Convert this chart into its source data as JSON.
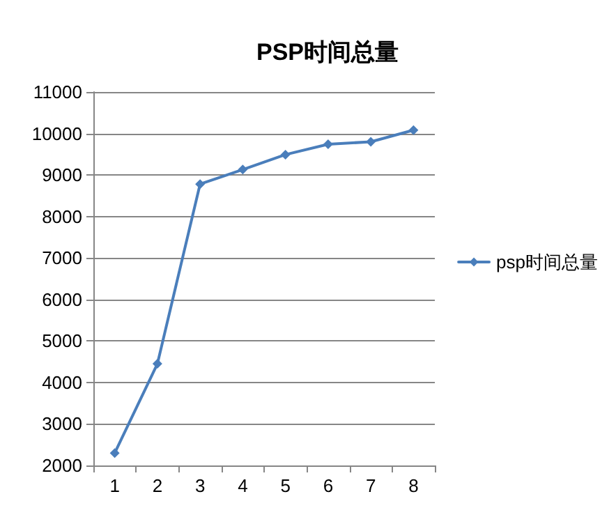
{
  "chart_data": {
    "type": "line",
    "title": "PSP时间总量",
    "categories": [
      "1",
      "2",
      "3",
      "4",
      "5",
      "6",
      "7",
      "8"
    ],
    "series": [
      {
        "name": "psp时间总量",
        "color": "#4a7ebb",
        "values": [
          2300,
          4450,
          8780,
          9130,
          9490,
          9740,
          9800,
          10080
        ]
      }
    ],
    "ylim": [
      2000,
      11000
    ],
    "yticks": [
      2000,
      3000,
      4000,
      5000,
      6000,
      7000,
      8000,
      9000,
      10000,
      11000
    ],
    "grid": "y",
    "legend": "right",
    "marker": "diamond",
    "line_style": "solid"
  }
}
